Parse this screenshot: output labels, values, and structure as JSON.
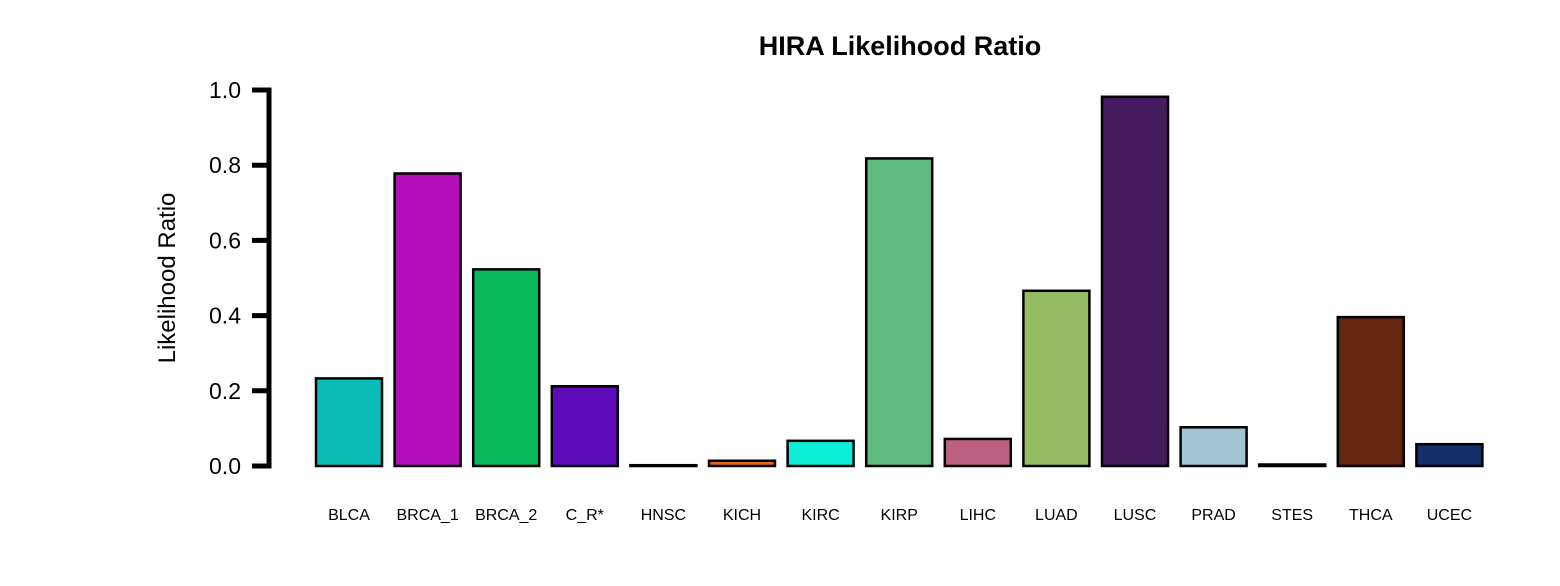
{
  "chart_data": {
    "type": "bar",
    "title": "HIRA Likelihood Ratio",
    "xlabel": "",
    "ylabel": "Likelihood Ratio",
    "ylim": [
      0,
      1.0
    ],
    "yticks": [
      "0.0",
      "0.2",
      "0.4",
      "0.6",
      "0.8",
      "1.0"
    ],
    "ytick_values": [
      0,
      0.2,
      0.4,
      0.6,
      0.8,
      1.0
    ],
    "grid": false,
    "legend": "none",
    "categories": [
      "BLCA",
      "BRCA_1",
      "BRCA_2",
      "C_R*",
      "HNSC",
      "KICH",
      "KIRC",
      "KIRP",
      "LIHC",
      "LUAD",
      "LUSC",
      "PRAD",
      "STES",
      "THCA",
      "UCEC"
    ],
    "values": [
      0.233,
      0.778,
      0.523,
      0.212,
      0.001,
      0.014,
      0.067,
      0.818,
      0.072,
      0.466,
      0.982,
      0.103,
      0.004,
      0.396,
      0.058
    ],
    "colors": [
      "#0CBCB7",
      "#B50DBA",
      "#08B85A",
      "#5E0BB9",
      "#111111",
      "#E8641A",
      "#0DEED8",
      "#5FBA7F",
      "#BD6182",
      "#96BC63",
      "#461A5E",
      "#A2C5D4",
      "#111111",
      "#65260F",
      "#13306A"
    ]
  }
}
